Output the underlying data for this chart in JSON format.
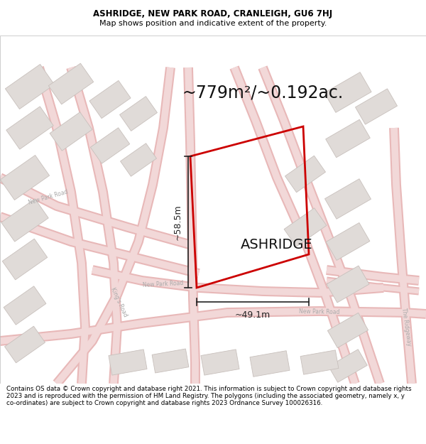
{
  "title_line1": "ASHRIDGE, NEW PARK ROAD, CRANLEIGH, GU6 7HJ",
  "title_line2": "Map shows position and indicative extent of the property.",
  "area_label": "~779m²/~0.192ac.",
  "property_name": "ASHRIDGE",
  "dim_width": "~49.1m",
  "dim_height": "~58.5m",
  "footer_text": "Contains OS data © Crown copyright and database right 2021. This information is subject to Crown copyright and database rights 2023 and is reproduced with the permission of HM Land Registry. The polygons (including the associated geometry, namely x, y co-ordinates) are subject to Crown copyright and database rights 2023 Ordnance Survey 100026316.",
  "map_bg": "#f7f4f2",
  "road_line_color": "#e8b8b8",
  "road_fill_color": "#f2d8d8",
  "building_color": "#e0dbd8",
  "building_edge_color": "#c8c0bc",
  "plot_edge_color": "#cc0000",
  "title_bg": "#ffffff",
  "footer_bg": "#ffffff",
  "dim_color": "#222222",
  "text_color": "#333333",
  "road_label_color": "#aaaaaa"
}
